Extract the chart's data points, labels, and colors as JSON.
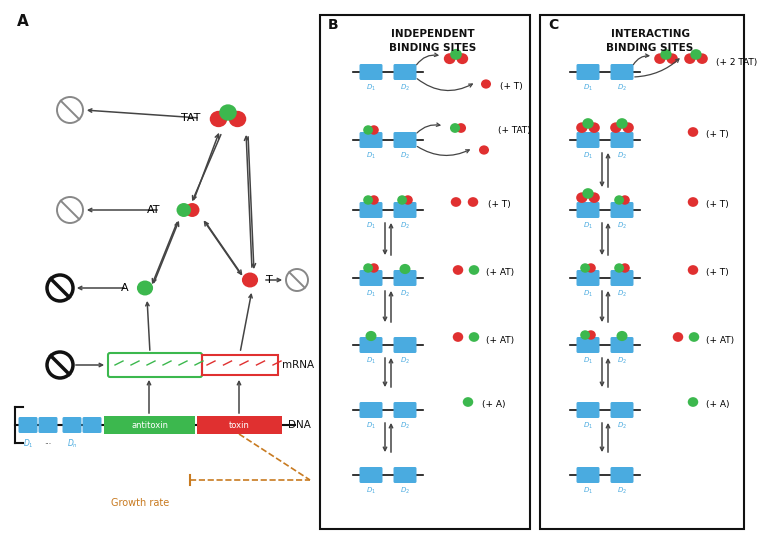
{
  "fig_width": 7.39,
  "fig_height": 5.24,
  "bg_color": "#f5f5f5",
  "colors": {
    "green": "#3cb84e",
    "red": "#e03030",
    "blue": "#4aabe0",
    "dark_gray": "#444444",
    "medium_gray": "#888888",
    "orange_brown": "#c87a20",
    "black": "#111111",
    "white": "#ffffff"
  },
  "panel_B_labels": [
    "(+ T)",
    "(+ TAT)",
    "(+ T)",
    "(+ AT)",
    "(+ AT)",
    "(+ A)"
  ],
  "panel_C_labels": [
    "(+ 2 TAT)",
    "(+ T)",
    "(+ T)",
    "(+ T)",
    "(+ AT)",
    "(+ A)"
  ]
}
